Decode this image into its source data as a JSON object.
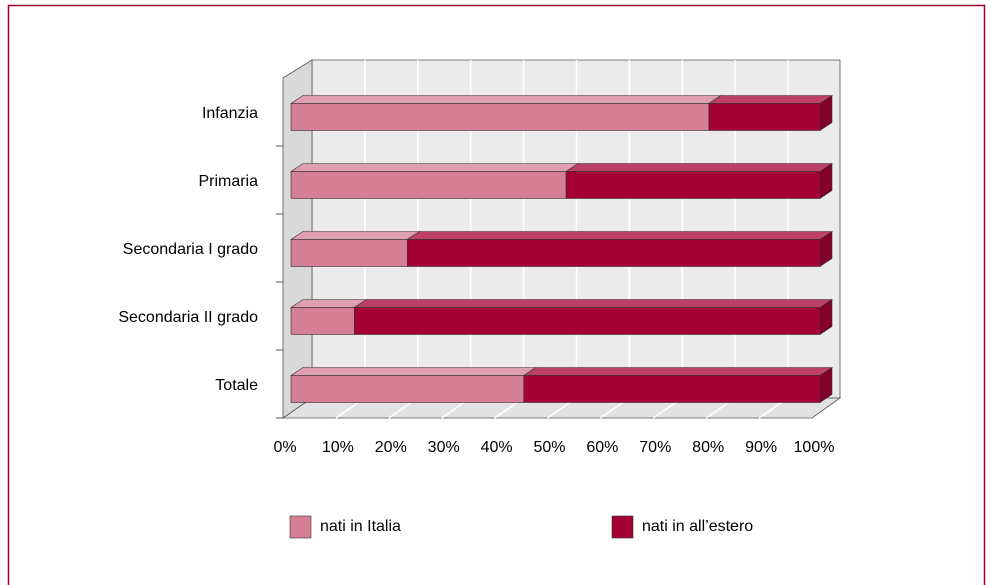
{
  "chart_data": {
    "type": "bar",
    "orientation": "horizontal",
    "stacked": true,
    "categories": [
      "Infanzia",
      "Primaria",
      "Secondaria I grado",
      "Secondaria II grado",
      "Totale"
    ],
    "series": [
      {
        "name": "nati in Italia",
        "color": "#d47f96",
        "values": [
          79,
          52,
          22,
          12,
          44
        ]
      },
      {
        "name": "nati in all’estero",
        "color": "#a50034",
        "values": [
          21,
          48,
          78,
          88,
          56
        ]
      }
    ],
    "xlim": [
      0,
      100
    ],
    "xticks": [
      {
        "value": 0,
        "label": "0%"
      },
      {
        "value": 10,
        "label": "10%"
      },
      {
        "value": 20,
        "label": "20%"
      },
      {
        "value": 30,
        "label": "30%"
      },
      {
        "value": 40,
        "label": "40%"
      },
      {
        "value": 50,
        "label": "50%"
      },
      {
        "value": 60,
        "label": "60%"
      },
      {
        "value": 70,
        "label": "70%"
      },
      {
        "value": 80,
        "label": "80%"
      },
      {
        "value": 90,
        "label": "90%"
      },
      {
        "value": 100,
        "label": "100%"
      }
    ],
    "grid": true,
    "legend": "bottom"
  }
}
